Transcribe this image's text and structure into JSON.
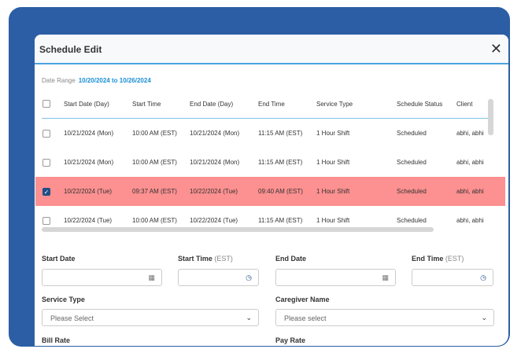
{
  "modal": {
    "title": "Schedule Edit",
    "close_icon": "close-icon"
  },
  "date_range": {
    "label": "Date Range",
    "value": "10/20/2024 to 10/26/2024"
  },
  "table": {
    "columns": [
      "Start Date (Day)",
      "Start Time",
      "End Date (Day)",
      "End Time",
      "Service Type",
      "Schedule Status",
      "Client"
    ],
    "rows": [
      {
        "selected": false,
        "cells": [
          "10/21/2024 (Mon)",
          "10:00 AM (EST)",
          "10/21/2024 (Mon)",
          "11:15 AM (EST)",
          "1 Hour Shift",
          "Scheduled",
          "abhi, abhi"
        ]
      },
      {
        "selected": false,
        "cells": [
          "10/21/2024 (Mon)",
          "10:00 AM (EST)",
          "10/21/2024 (Mon)",
          "11:15 AM (EST)",
          "1 Hour Shift",
          "Scheduled",
          "abhi, abhi"
        ]
      },
      {
        "selected": true,
        "cells": [
          "10/22/2024 (Tue)",
          "09:37 AM (EST)",
          "10/22/2024 (Tue)",
          "09:40 AM (EST)",
          "1 Hour Shift",
          "Scheduled",
          "abhi, abhi"
        ]
      },
      {
        "selected": false,
        "cells": [
          "10/22/2024 (Tue)",
          "10:00 AM (EST)",
          "10/22/2024 (Tue)",
          "11:15 AM (EST)",
          "1 Hour Shift",
          "Scheduled",
          "abhi, abhi"
        ]
      }
    ],
    "selected_color": "#fd9090"
  },
  "form": {
    "start_date": {
      "label": "Start Date",
      "value": ""
    },
    "start_time": {
      "label": "Start Time",
      "suffix": "(EST)",
      "value": ""
    },
    "end_date": {
      "label": "End Date",
      "value": ""
    },
    "end_time": {
      "label": "End Time",
      "suffix": "(EST)",
      "value": ""
    },
    "service_type": {
      "label": "Service Type",
      "placeholder": "Please Select"
    },
    "caregiver_name": {
      "label": "Caregiver Name",
      "placeholder": "Please select"
    },
    "bill_rate": {
      "label": "Bill Rate"
    },
    "pay_rate": {
      "label": "Pay Rate"
    }
  },
  "colors": {
    "background": "#2c5ea5",
    "accent": "#1b8fd6"
  }
}
